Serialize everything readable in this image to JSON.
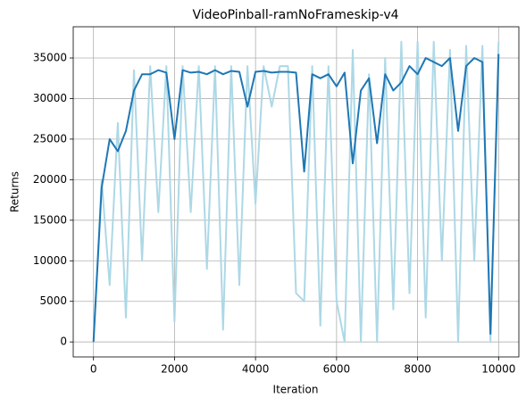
{
  "chart_data": {
    "type": "line",
    "title": "VideoPinball-ramNoFrameskip-v4",
    "xlabel": "Iteration",
    "ylabel": "Returns",
    "x": [
      0,
      200,
      400,
      600,
      800,
      1000,
      1200,
      1400,
      1600,
      1800,
      2000,
      2200,
      2400,
      2600,
      2800,
      3000,
      3200,
      3400,
      3600,
      3800,
      4000,
      4200,
      4400,
      4600,
      4800,
      5000,
      5200,
      5400,
      5600,
      5800,
      6000,
      6200,
      6400,
      6600,
      6800,
      7000,
      7200,
      7400,
      7600,
      7800,
      8000,
      8200,
      8400,
      8600,
      8800,
      9000,
      9200,
      9400,
      9600,
      9800,
      10000
    ],
    "series": [
      {
        "color": "#add8e6",
        "width": 2,
        "values": [
          0,
          20000,
          7000,
          27000,
          3000,
          33500,
          10000,
          34000,
          16000,
          34000,
          2500,
          34000,
          16000,
          34000,
          9000,
          34000,
          1500,
          34000,
          7000,
          34000,
          17000,
          34000,
          29000,
          34000,
          34000,
          6000,
          5000,
          34000,
          2000,
          34000,
          5000,
          0,
          36000,
          0,
          33000,
          0,
          35000,
          4000,
          37000,
          6000,
          37000,
          3000,
          37000,
          10000,
          36000,
          0,
          36500,
          10000,
          36500,
          0,
          37000
        ]
      },
      {
        "color": "#1f77b4",
        "width": 2,
        "values": [
          0,
          19000,
          25000,
          23500,
          26000,
          31000,
          33000,
          33000,
          33500,
          33200,
          25000,
          33500,
          33200,
          33300,
          33000,
          33500,
          33000,
          33400,
          33300,
          29000,
          33300,
          33400,
          33200,
          33300,
          33300,
          33200,
          21000,
          33000,
          32500,
          33000,
          31500,
          33200,
          22000,
          31000,
          32500,
          24500,
          33000,
          31000,
          32000,
          34000,
          33000,
          35000,
          34500,
          34000,
          35000,
          26000,
          34000,
          35000,
          34500,
          1000,
          35500
        ]
      }
    ],
    "xlim": [
      -500,
      10500
    ],
    "ylim": [
      -1850,
      38850
    ],
    "xticks": [
      0,
      2000,
      4000,
      6000,
      8000,
      10000
    ],
    "yticks": [
      0,
      5000,
      10000,
      15000,
      20000,
      25000,
      30000,
      35000
    ],
    "grid": true
  }
}
